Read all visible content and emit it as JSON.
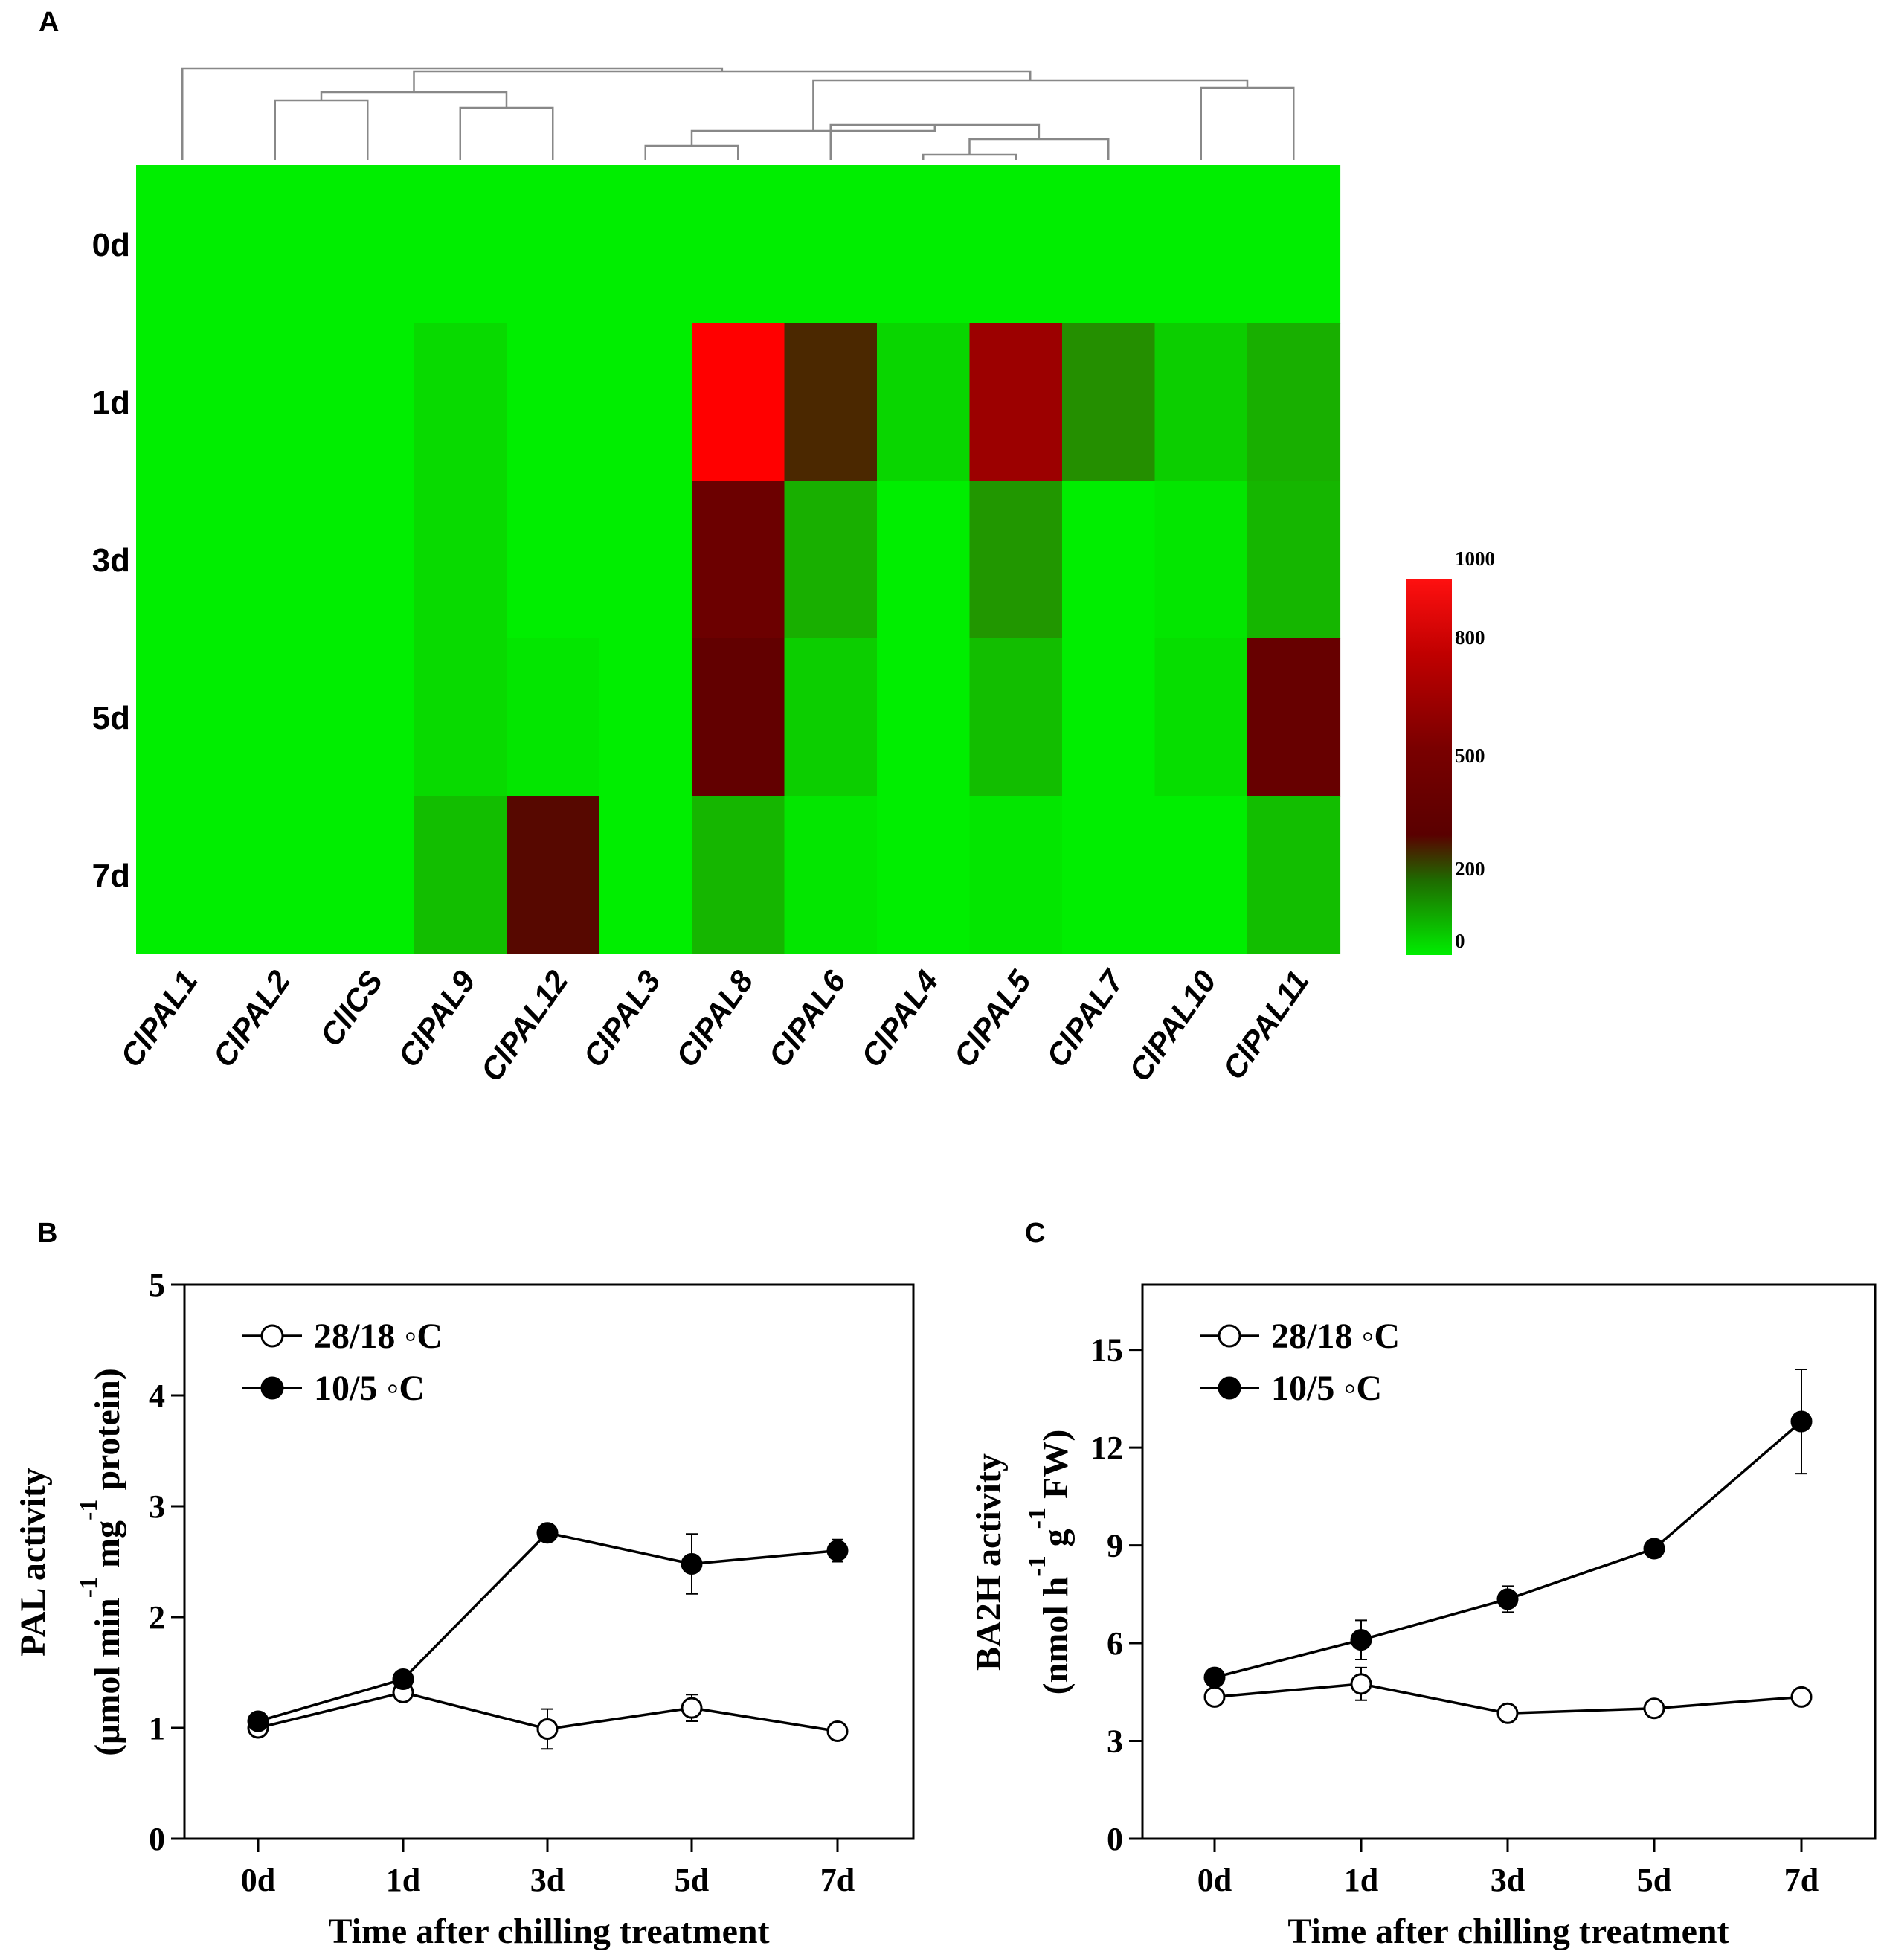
{
  "panels": {
    "a": "A",
    "b": "B",
    "c": "C"
  },
  "colors": {
    "low": "#00ee00",
    "mid": "#5a0000",
    "high": "#ff0000"
  },
  "chart_data": [
    {
      "type": "heatmap",
      "panel": "A",
      "rows": [
        "0d",
        "1d",
        "3d",
        "5d",
        "7d"
      ],
      "columns": [
        "ClPAL1",
        "ClPAL2",
        "ClICS",
        "ClPAL9",
        "ClPAL12",
        "ClPAL3",
        "ClPAL8",
        "ClPAL6",
        "ClPAL4",
        "ClPAL5",
        "ClPAL7",
        "ClPAL10",
        "ClPAL11"
      ],
      "values": [
        [
          0,
          0,
          0,
          0,
          0,
          0,
          0,
          0,
          0,
          0,
          0,
          0,
          0
        ],
        [
          0,
          0,
          0,
          25,
          0,
          0,
          950,
          250,
          30,
          560,
          120,
          40,
          80
        ],
        [
          0,
          0,
          0,
          25,
          0,
          0,
          370,
          80,
          0,
          110,
          0,
          10,
          70
        ],
        [
          0,
          0,
          0,
          25,
          10,
          0,
          330,
          40,
          0,
          60,
          0,
          20,
          350
        ],
        [
          0,
          0,
          0,
          60,
          290,
          0,
          70,
          10,
          0,
          10,
          0,
          0,
          60
        ]
      ],
      "colorbar": {
        "ticks": [
          0,
          200,
          500,
          800,
          1000
        ],
        "range": [
          0,
          1000
        ]
      },
      "dendrogram": "hierarchical clustering of columns"
    },
    {
      "type": "line",
      "panel": "B",
      "categories": [
        "0d",
        "1d",
        "3d",
        "5d",
        "7d"
      ],
      "series": [
        {
          "name": "28/18 ◦C",
          "marker": "open-circle",
          "values": [
            1.0,
            1.32,
            0.99,
            1.18,
            0.97
          ],
          "errors": [
            0.03,
            0.04,
            0.18,
            0.12,
            0.03
          ]
        },
        {
          "name": "10/5 ◦C",
          "marker": "filled-circle",
          "values": [
            1.06,
            1.44,
            2.76,
            2.48,
            2.6
          ],
          "errors": [
            0.03,
            0.03,
            0.05,
            0.27,
            0.1
          ]
        }
      ],
      "xlabel": "Time after chilling treatment",
      "ylabel_line1": "PAL activity",
      "ylabel_line2": "(μmol min",
      "ylabel_exp1": "-1",
      "ylabel_mid": " mg",
      "ylabel_exp2": "-1",
      "ylabel_end": " protein)",
      "ylim": [
        0,
        5
      ],
      "yticks": [
        0,
        1,
        2,
        3,
        4,
        5
      ]
    },
    {
      "type": "line",
      "panel": "C",
      "categories": [
        "0d",
        "1d",
        "3d",
        "5d",
        "7d"
      ],
      "series": [
        {
          "name": "28/18 ◦C",
          "marker": "open-circle",
          "values": [
            4.35,
            4.75,
            3.85,
            4.0,
            4.35
          ],
          "errors": [
            0.15,
            0.5,
            0.1,
            0.1,
            0.15
          ]
        },
        {
          "name": "10/5 ◦C",
          "marker": "filled-circle",
          "values": [
            4.95,
            6.1,
            7.35,
            8.9,
            12.8
          ],
          "errors": [
            0.2,
            0.6,
            0.4,
            0.15,
            1.6
          ]
        }
      ],
      "xlabel": "Time after chilling treatment",
      "ylabel_line1": "BA2H activity",
      "ylabel_line2": "(nmol h",
      "ylabel_exp1": "-1",
      "ylabel_mid": " g",
      "ylabel_exp2": "-1",
      "ylabel_end": " FW)",
      "ylim": [
        0,
        17
      ],
      "yticks": [
        0,
        3,
        6,
        9,
        12,
        15
      ]
    }
  ]
}
